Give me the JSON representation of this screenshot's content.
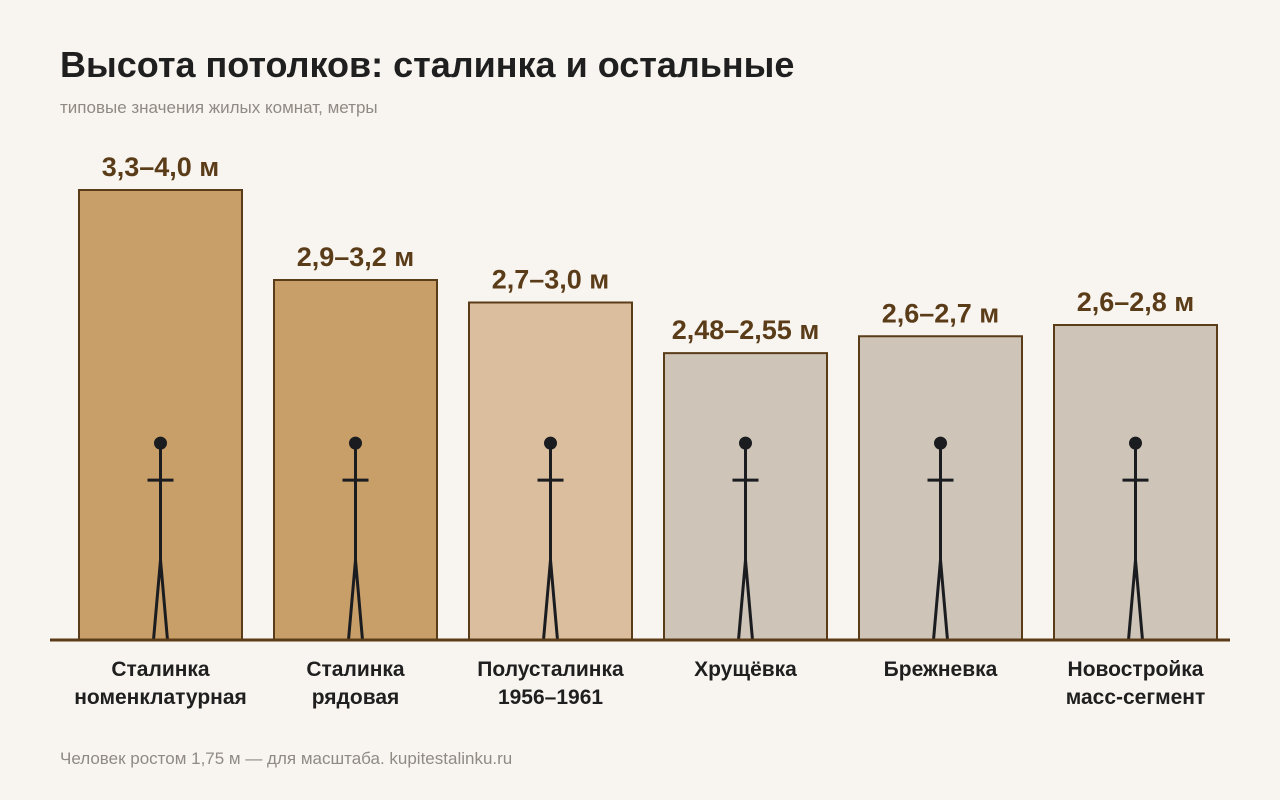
{
  "title": "Высота потолков: сталинка и остальные",
  "subtitle": "типовые значения жилых комнат, метры",
  "footnote": "Человек ростом 1,75 м — для масштаба. kupitestalinku.ru",
  "colors": {
    "stalinka": "#c99f69",
    "polustalinka": "#dbbe9e",
    "other": "#cec4b8",
    "bar_stroke": "#5b3c19",
    "axis": "#5b3c19",
    "label": "#5b3c19",
    "figure": "#1a1c20"
  },
  "chart_data": {
    "type": "bar",
    "title": "Высота потолков: сталинка и остальные",
    "subtitle": "типовые значения жилых комнат, метры",
    "unit": "м",
    "ylim": [
      0,
      4.0
    ],
    "grid": false,
    "legend": "none",
    "scale_figure": {
      "height": 1.75,
      "note": "Человек ростом 1,75 м — для масштаба."
    },
    "categories": [
      [
        "Сталинка",
        "номенклатурная"
      ],
      [
        "Сталинка",
        "рядовая"
      ],
      [
        "Полусталинка",
        "1956–1961"
      ],
      [
        "Хрущёвка"
      ],
      [
        "Брежневка"
      ],
      [
        "Новостройка",
        "масс-сегмент"
      ]
    ],
    "ranges": [
      [
        3.3,
        4.0
      ],
      [
        2.9,
        3.2
      ],
      [
        2.7,
        3.0
      ],
      [
        2.48,
        2.55
      ],
      [
        2.6,
        2.7
      ],
      [
        2.6,
        2.8
      ]
    ],
    "values": [
      4.0,
      3.2,
      3.0,
      2.55,
      2.7,
      2.8
    ],
    "labels": [
      "3,3–4,0 м",
      "2,9–3,2 м",
      "2,7–3,0 м",
      "2,48–2,55 м",
      "2,6–2,7 м",
      "2,6–2,8 м"
    ],
    "groups": [
      "stalinka",
      "stalinka",
      "polustalinka",
      "other",
      "other",
      "other"
    ]
  }
}
